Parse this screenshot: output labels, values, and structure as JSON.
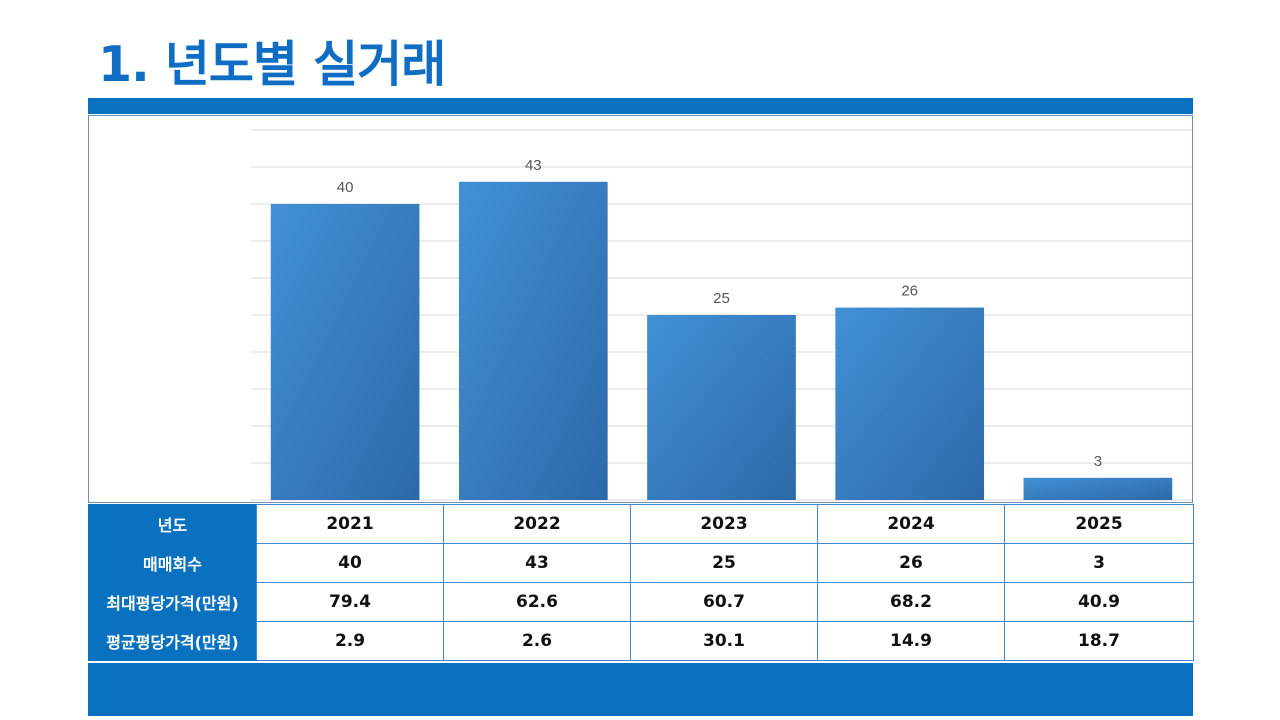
{
  "page": {
    "title": "1. 년도별 실거래"
  },
  "colors": {
    "accent": "#0a70c0",
    "bar_light": "#4290d6",
    "bar_dark": "#2c69a8",
    "grid": "#d9d9d9"
  },
  "chart_data": {
    "type": "bar",
    "categories": [
      "2021",
      "2022",
      "2023",
      "2024",
      "2025"
    ],
    "values": [
      40,
      43,
      25,
      26,
      3
    ],
    "ylim": [
      0,
      50
    ],
    "grid": true,
    "legend": "none",
    "data_labels": true
  },
  "table": {
    "rows": [
      {
        "header": "년도",
        "cells": [
          "2021",
          "2022",
          "2023",
          "2024",
          "2025"
        ]
      },
      {
        "header": "매매회수",
        "cells": [
          "40",
          "43",
          "25",
          "26",
          "3"
        ]
      },
      {
        "header": "최대평당가격(만원)",
        "cells": [
          "79.4",
          "62.6",
          "60.7",
          "68.2",
          "40.9"
        ]
      },
      {
        "header": "평균평당가격(만원)",
        "cells": [
          "2.9",
          "2.6",
          "30.1",
          "14.9",
          "18.7"
        ]
      }
    ]
  }
}
